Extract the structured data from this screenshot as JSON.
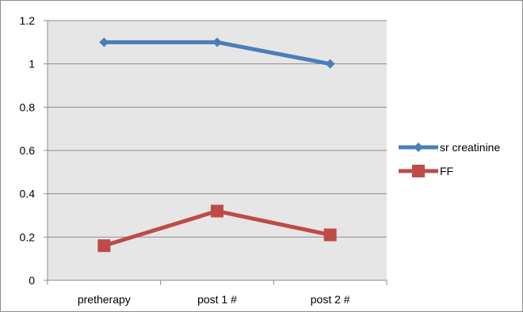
{
  "chart_data": {
    "type": "line",
    "title": "",
    "xlabel": "",
    "ylabel": "",
    "categories": [
      "pretherapy",
      "post 1 #",
      "post 2 #"
    ],
    "ylim": [
      0,
      1.2
    ],
    "yticks": [
      0,
      0.2,
      0.4,
      0.6,
      0.8,
      1,
      1.2
    ],
    "grid": true,
    "legend_position": "right",
    "series": [
      {
        "name": "sr creatinine",
        "values": [
          1.1,
          1.1,
          1.0
        ],
        "color": "#4a7ebb",
        "marker": "diamond"
      },
      {
        "name": "FF",
        "values": [
          0.16,
          0.32,
          0.21
        ],
        "color": "#be4b48",
        "marker": "square"
      }
    ],
    "plot_background": "#e6e6e6",
    "gridline_color": "#8c8c8c"
  }
}
